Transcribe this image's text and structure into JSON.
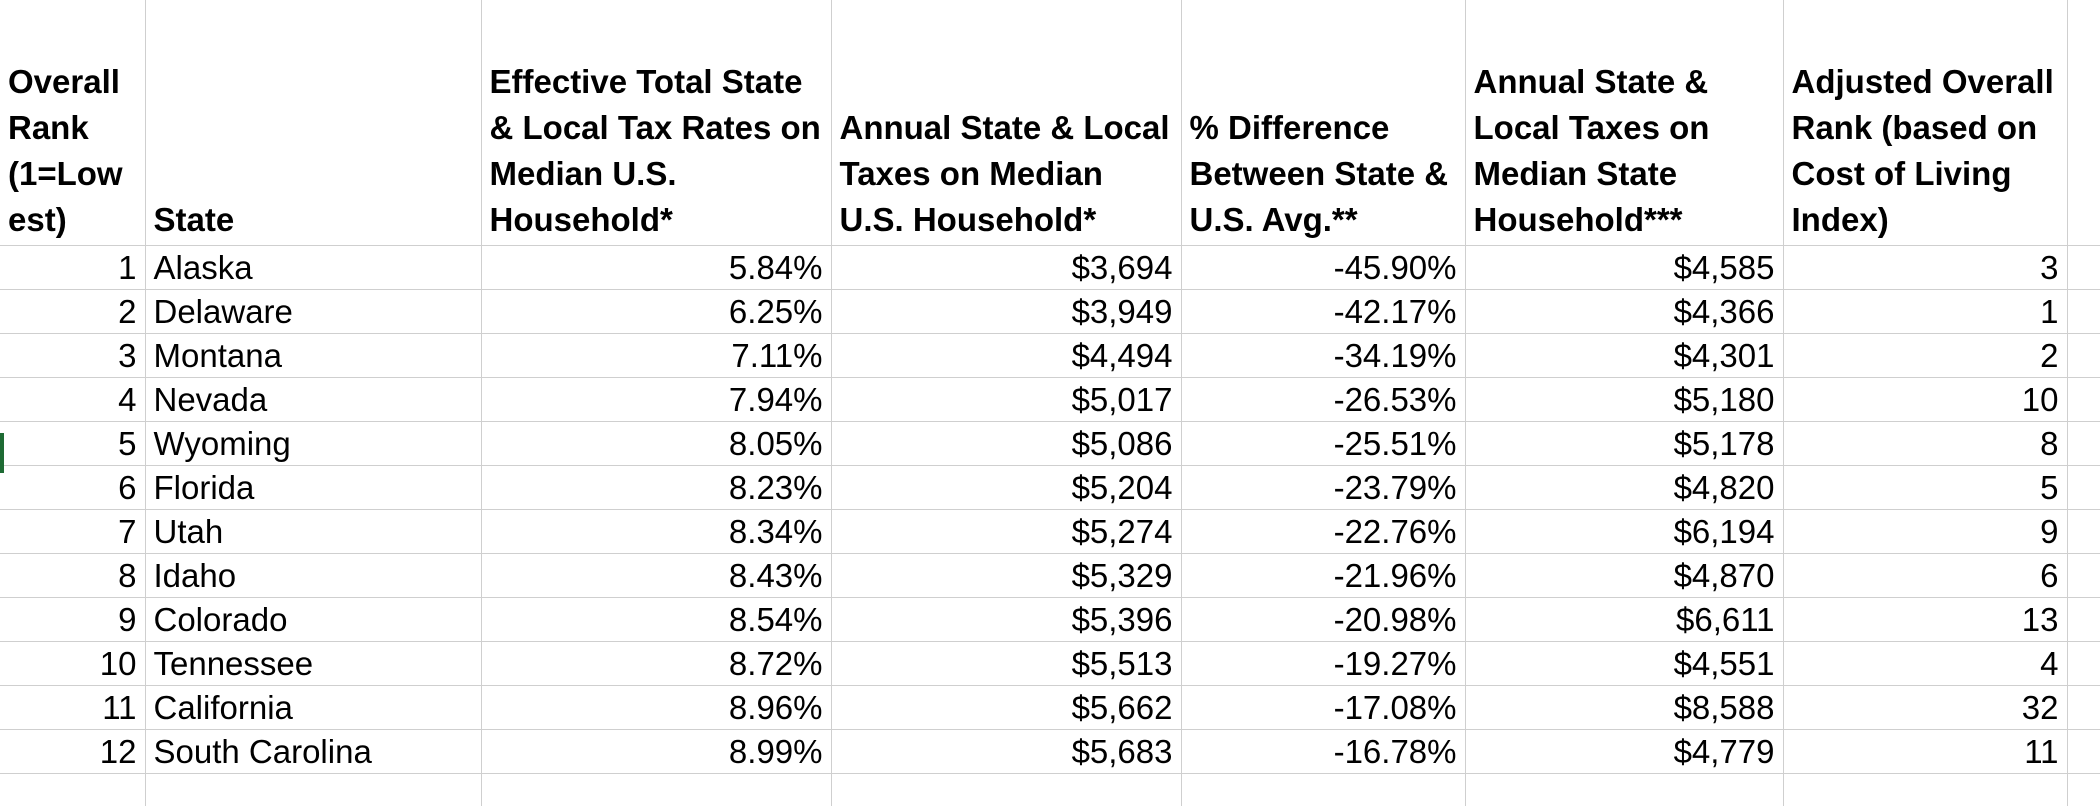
{
  "headers": [
    "Overall\nRank\n(1=Low\nest)",
    "State",
    "Effective Total State & Local Tax Rates on Median U.S. Household*",
    "Annual State & Local Taxes on Median U.S. Household*",
    "% Difference Between State & U.S. Avg.**",
    "Annual State & Local Taxes on Median State Household***",
    "Adjusted Overall Rank (based on Cost of Living Index)",
    ""
  ],
  "rows": [
    [
      "1",
      "Alaska",
      "5.84%",
      "$3,694",
      "-45.90%",
      "$4,585",
      "3"
    ],
    [
      "2",
      "Delaware",
      "6.25%",
      "$3,949",
      "-42.17%",
      "$4,366",
      "1"
    ],
    [
      "3",
      "Montana",
      "7.11%",
      "$4,494",
      "-34.19%",
      "$4,301",
      "2"
    ],
    [
      "4",
      "Nevada",
      "7.94%",
      "$5,017",
      "-26.53%",
      "$5,180",
      "10"
    ],
    [
      "5",
      "Wyoming",
      "8.05%",
      "$5,086",
      "-25.51%",
      "$5,178",
      "8"
    ],
    [
      "6",
      "Florida",
      "8.23%",
      "$5,204",
      "-23.79%",
      "$4,820",
      "5"
    ],
    [
      "7",
      "Utah",
      "8.34%",
      "$5,274",
      "-22.76%",
      "$6,194",
      "9"
    ],
    [
      "8",
      "Idaho",
      "8.43%",
      "$5,329",
      "-21.96%",
      "$4,870",
      "6"
    ],
    [
      "9",
      "Colorado",
      "8.54%",
      "$5,396",
      "-20.98%",
      "$6,611",
      "13"
    ],
    [
      "10",
      "Tennessee",
      "8.72%",
      "$5,513",
      "-19.27%",
      "$4,551",
      "4"
    ],
    [
      "11",
      "California",
      "8.96%",
      "$5,662",
      "-17.08%",
      "$8,588",
      "32"
    ],
    [
      "12",
      "South Carolina",
      "8.99%",
      "$5,683",
      "-16.78%",
      "$4,779",
      "11"
    ]
  ],
  "accent": {
    "grid_line": "#cfcfcf",
    "selection_marker": "#1e6b34"
  }
}
